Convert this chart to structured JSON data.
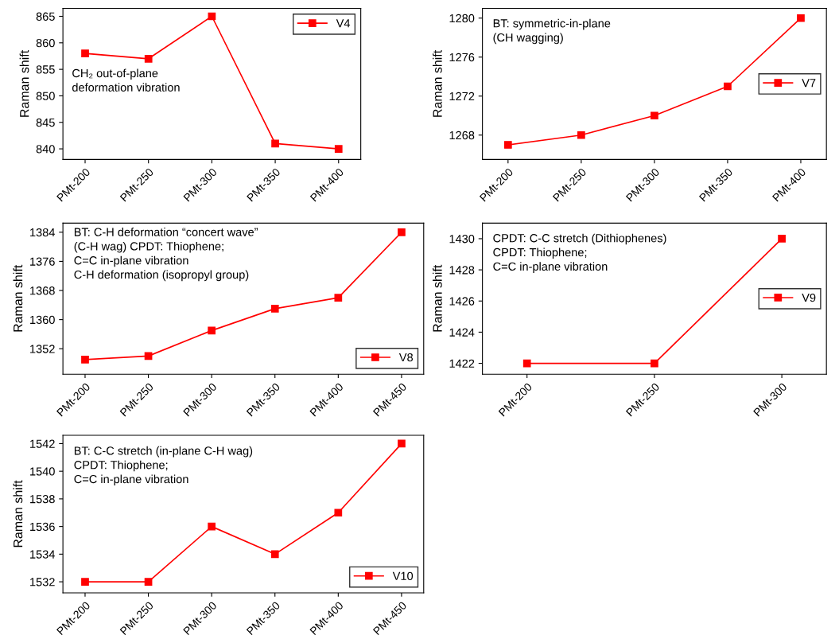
{
  "chart_data": [
    {
      "type": "line",
      "ylabel": "Raman shift",
      "categories": [
        "PMt-200",
        "PMt-250",
        "PMt-300",
        "PMt-350",
        "PMt-400"
      ],
      "series": [
        {
          "name": "V4",
          "color": "#ff0000",
          "values": [
            858,
            857,
            865,
            841,
            840
          ]
        }
      ],
      "ylim": [
        838,
        866.5
      ],
      "yticks": [
        840,
        845,
        850,
        855,
        860,
        865
      ],
      "annotations": [
        "CH₂ out-of-plane\ndeformation vibration"
      ],
      "legend": "top right",
      "marker": "square",
      "grid": false
    },
    {
      "type": "line",
      "ylabel": "Raman shift",
      "categories": [
        "PMt-200",
        "PMt-250",
        "PMt-300",
        "PMt-350",
        "PMt-400"
      ],
      "series": [
        {
          "name": "V7",
          "color": "#ff0000",
          "values": [
            1267,
            1268,
            1270,
            1273,
            1280
          ]
        }
      ],
      "ylim": [
        1265.5,
        1281
      ],
      "yticks": [
        1268,
        1272,
        1276,
        1280
      ],
      "annotations": [
        "BT: symmetric-in-plane\n(CH wagging)"
      ],
      "legend": "right",
      "marker": "square",
      "grid": false
    },
    {
      "type": "line",
      "ylabel": "Raman shift",
      "categories": [
        "PMt-200",
        "PMt-250",
        "PMt-300",
        "PMt-350",
        "PMt-400",
        "PMt-450"
      ],
      "series": [
        {
          "name": "V8",
          "color": "#ff0000",
          "values": [
            1349,
            1350,
            1357,
            1363,
            1366,
            1384
          ]
        }
      ],
      "ylim": [
        1345,
        1386.5
      ],
      "yticks": [
        1352,
        1360,
        1368,
        1376,
        1384
      ],
      "annotations": [
        "BT: C-H deformation “concert wave”\n(C-H wag) CPDT: Thiophene;\nC=C in-plane vibration\nC-H deformation (isopropyl group)"
      ],
      "legend": "lower right",
      "marker": "square",
      "grid": false
    },
    {
      "type": "line",
      "ylabel": "Raman shift",
      "categories": [
        "PMt-200",
        "PMt-250",
        "PMt-300"
      ],
      "series": [
        {
          "name": "V9",
          "color": "#ff0000",
          "values": [
            1422,
            1422,
            1430
          ]
        }
      ],
      "ylim": [
        1421.3,
        1431
      ],
      "yticks": [
        1422,
        1424,
        1426,
        1428,
        1430
      ],
      "annotations": [
        "CPDT: C-C stretch (Dithiophenes)\nCPDT: Thiophene;\nC=C in-plane vibration"
      ],
      "legend": "right",
      "marker": "square",
      "grid": false
    },
    {
      "type": "line",
      "ylabel": "Raman shift",
      "categories": [
        "PMt-200",
        "PMt-250",
        "PMt-300",
        "PMt-350",
        "PMt-400",
        "PMt-450"
      ],
      "series": [
        {
          "name": "V10",
          "color": "#ff0000",
          "values": [
            1532,
            1532,
            1536,
            1534,
            1537,
            1542
          ]
        }
      ],
      "ylim": [
        1531.2,
        1542.6
      ],
      "yticks": [
        1532,
        1534,
        1536,
        1538,
        1540,
        1542
      ],
      "annotations": [
        "BT: C-C stretch (in-plane C-H wag)\nCPDT: Thiophene;\nC=C in-plane vibration"
      ],
      "legend": "lower right",
      "marker": "square",
      "grid": false
    }
  ]
}
